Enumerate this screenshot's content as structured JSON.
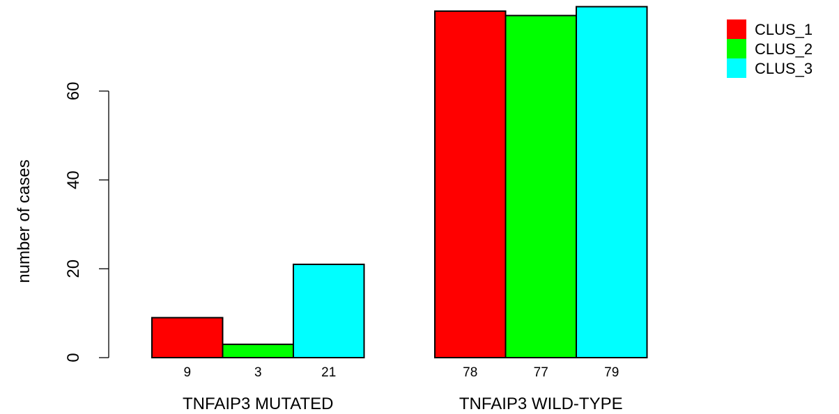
{
  "chart_data": {
    "type": "bar",
    "title": "",
    "xlabel": "",
    "ylabel": "number of cases",
    "ylim": [
      0,
      79
    ],
    "yticks": [
      0,
      20,
      40,
      60
    ],
    "grid": false,
    "legend_position": "top-right",
    "categories": [
      "TNFAIP3 MUTATED",
      "TNFAIP3 WILD-TYPE"
    ],
    "series": [
      {
        "name": "CLUS_1",
        "color": "#ff0000",
        "values": [
          9,
          78
        ]
      },
      {
        "name": "CLUS_2",
        "color": "#00ff00",
        "values": [
          3,
          77
        ]
      },
      {
        "name": "CLUS_3",
        "color": "#00ffff",
        "values": [
          21,
          79
        ]
      }
    ]
  }
}
